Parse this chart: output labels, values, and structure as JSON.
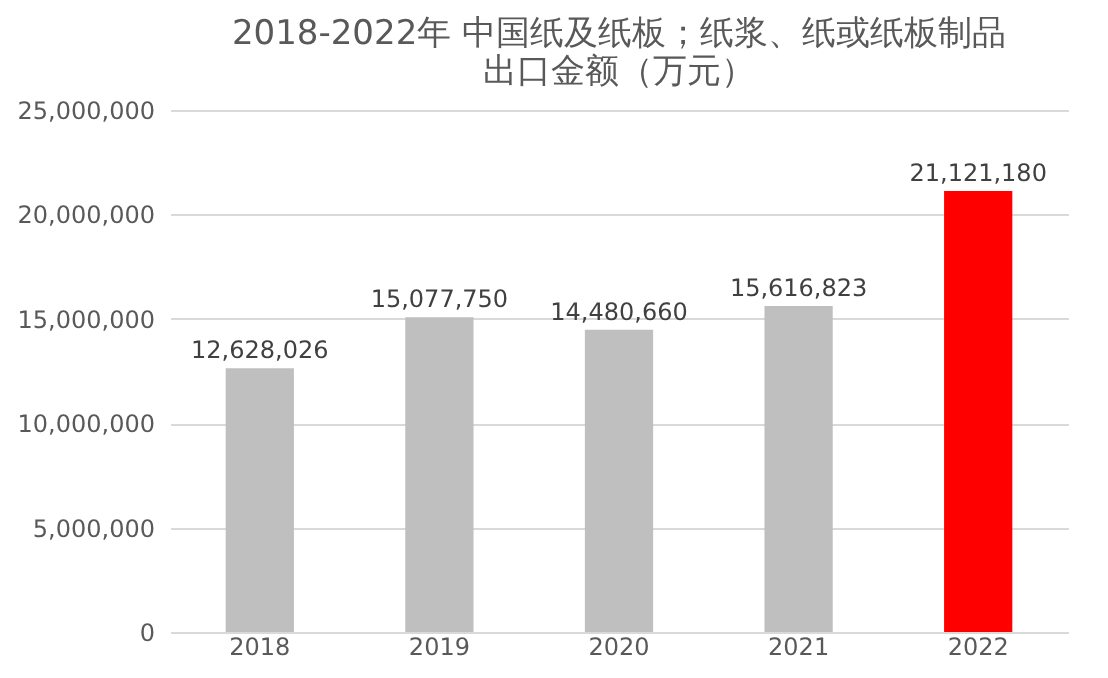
{
  "chart_data": {
    "type": "bar",
    "title": "2018-2022年 中国纸及纸板；纸浆、纸或纸板制品出口金额（万元）",
    "categories": [
      "2018",
      "2019",
      "2020",
      "2021",
      "2022"
    ],
    "values": [
      12628026,
      15077750,
      14480660,
      15616823,
      21121180
    ],
    "value_labels": [
      "12,628,026",
      "15,077,750",
      "14,480,660",
      "15,616,823",
      "21,121,180"
    ],
    "colors": [
      "#bfbfbf",
      "#bfbfbf",
      "#bfbfbf",
      "#bfbfbf",
      "#ff0000"
    ],
    "ylim": [
      0,
      25000000
    ],
    "yticks": [
      0,
      {
        "value": 5000000,
        "label": "5,000,000"
      },
      {
        "value": 10000000,
        "label": "10,000,000"
      },
      {
        "value": 15000000,
        "label": "15,000,000"
      },
      {
        "value": 20000000,
        "label": "20,000,000"
      },
      {
        "value": 25000000,
        "label": "25,000,000"
      }
    ],
    "grid": "y",
    "legend": false
  }
}
